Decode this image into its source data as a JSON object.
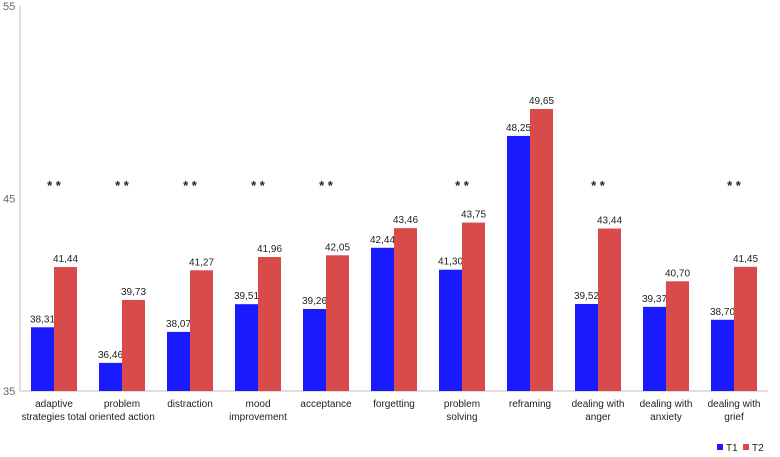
{
  "chart_data": {
    "type": "bar",
    "title": "",
    "xlabel": "",
    "ylabel": "",
    "ylim": [
      35,
      55
    ],
    "yticks": [
      35,
      45,
      55
    ],
    "grid": false,
    "legend_position": "bottom-right",
    "colors": {
      "T1": "#1a1aff",
      "T2": "#d94a4a"
    },
    "categories": [
      [
        "adaptive",
        "strategies total"
      ],
      [
        "problem",
        "oriented action"
      ],
      [
        "distraction"
      ],
      [
        "mood",
        "improvement"
      ],
      [
        "acceptance"
      ],
      [
        "forgetting"
      ],
      [
        "problem",
        "solving"
      ],
      [
        "reframing"
      ],
      [
        "dealing  with",
        "anger"
      ],
      [
        "dealing  with",
        "anxiety"
      ],
      [
        "dealing with",
        "grief"
      ]
    ],
    "series": [
      {
        "name": "T1",
        "values": [
          38.31,
          36.46,
          38.07,
          39.51,
          39.26,
          42.44,
          41.3,
          48.25,
          39.52,
          39.37,
          38.7
        ],
        "labels": [
          "38,31",
          "36,46",
          "38,07",
          "39,51",
          "39,26",
          "42,44",
          "41,30",
          "48,25",
          "39,52",
          "39,37",
          "38,70"
        ]
      },
      {
        "name": "T2",
        "values": [
          41.44,
          39.73,
          41.27,
          41.96,
          42.05,
          43.46,
          43.75,
          49.65,
          43.44,
          40.7,
          41.45
        ],
        "labels": [
          "41,44",
          "39,73",
          "41,27",
          "41,96",
          "42,05",
          "43,46",
          "43,75",
          "49,65",
          "43,44",
          "40,70",
          "41,45"
        ]
      }
    ],
    "significance_marker": "* *",
    "significant": [
      true,
      true,
      true,
      true,
      true,
      false,
      true,
      false,
      true,
      false,
      true
    ]
  }
}
